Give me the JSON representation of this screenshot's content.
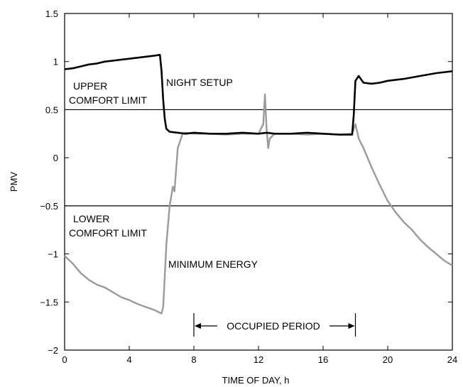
{
  "chart_data": {
    "type": "line",
    "xlabel": "TIME OF DAY, h",
    "ylabel": "PMV",
    "xlim": [
      0,
      24
    ],
    "ylim": [
      -2,
      1.5
    ],
    "x_ticks": [
      0,
      4,
      8,
      12,
      16,
      20,
      24
    ],
    "y_ticks": [
      -2,
      -1.5,
      -1,
      -0.5,
      0,
      0.5,
      1,
      1.5
    ],
    "y_tick_labels": [
      "−2",
      "−1.5",
      "−1",
      "−0.5",
      "0",
      "0.5",
      "1",
      "1.5"
    ],
    "grid": false,
    "series": [
      {
        "name": "NIGHT SETUP",
        "color": "#000000",
        "x": [
          0,
          0.5,
          1,
          1.5,
          2,
          2.5,
          3,
          3.5,
          4,
          4.5,
          5,
          5.5,
          5.9,
          6.0,
          6.1,
          6.2,
          6.3,
          6.5,
          7,
          7.5,
          8,
          9,
          10,
          11,
          12,
          12.5,
          13,
          14,
          15,
          16,
          17,
          17.8,
          17.9,
          18.0,
          18.2,
          18.5,
          19,
          19.5,
          20,
          21,
          22,
          23,
          24
        ],
        "y": [
          0.92,
          0.93,
          0.95,
          0.97,
          0.98,
          1.0,
          1.01,
          1.02,
          1.03,
          1.04,
          1.05,
          1.06,
          1.07,
          0.9,
          0.6,
          0.4,
          0.3,
          0.27,
          0.26,
          0.25,
          0.26,
          0.25,
          0.25,
          0.26,
          0.25,
          0.26,
          0.25,
          0.25,
          0.26,
          0.25,
          0.24,
          0.24,
          0.45,
          0.8,
          0.85,
          0.78,
          0.77,
          0.78,
          0.8,
          0.82,
          0.85,
          0.88,
          0.9
        ]
      },
      {
        "name": "MINIMUM ENERGY",
        "color": "#9a9a9a",
        "x": [
          0,
          0.5,
          1,
          1.5,
          2,
          2.5,
          3,
          3.5,
          4,
          4.5,
          5,
          5.5,
          6.0,
          6.1,
          6.3,
          6.5,
          6.7,
          6.8,
          7.0,
          7.3,
          7.5,
          8,
          9,
          10,
          11,
          12,
          12.3,
          12.4,
          12.5,
          12.6,
          12.7,
          13,
          14,
          15,
          16,
          17,
          17.8,
          18.0,
          18.2,
          18.5,
          19,
          19.5,
          20,
          20.5,
          21,
          21.5,
          22,
          22.5,
          23,
          23.5,
          24
        ],
        "y": [
          -1.02,
          -1.1,
          -1.2,
          -1.27,
          -1.32,
          -1.35,
          -1.4,
          -1.45,
          -1.48,
          -1.52,
          -1.55,
          -1.58,
          -1.62,
          -1.55,
          -0.9,
          -0.5,
          -0.3,
          -0.35,
          0.1,
          0.25,
          0.26,
          0.25,
          0.25,
          0.24,
          0.25,
          0.25,
          0.35,
          0.66,
          0.3,
          0.1,
          0.2,
          0.25,
          0.25,
          0.24,
          0.25,
          0.24,
          0.25,
          0.35,
          0.2,
          0.1,
          -0.1,
          -0.28,
          -0.45,
          -0.57,
          -0.67,
          -0.75,
          -0.85,
          -0.93,
          -1.0,
          -1.07,
          -1.12
        ]
      }
    ],
    "reference_lines": [
      {
        "label_line1": "UPPER",
        "label_line2": "COMFORT LIMIT",
        "y": 0.5
      },
      {
        "label_line1": "LOWER",
        "label_line2": "COMFORT LIMIT",
        "y": -0.5
      }
    ],
    "annotations": {
      "night_setup": "NIGHT SETUP",
      "minimum_energy": "MINIMUM ENERGY",
      "occupied_period": {
        "label": "OCCUPIED PERIOD",
        "x_start": 8,
        "x_end": 18
      }
    }
  }
}
